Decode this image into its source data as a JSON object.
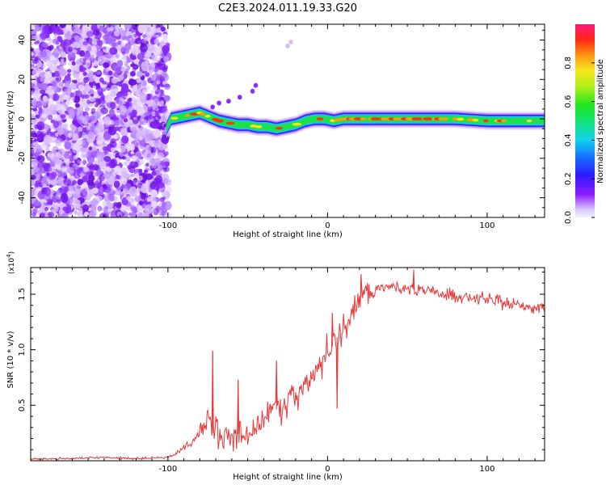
{
  "title": "C2E3.2024.011.19.33.G20",
  "chart_data": [
    {
      "type": "heatmap",
      "xlabel": "Height of straight line (km)",
      "ylabel": "Frequency (Hz)",
      "xlim": [
        -186,
        136
      ],
      "ylim": [
        -50,
        48
      ],
      "xticks": [
        -100,
        0,
        100
      ],
      "yticks": [
        -40,
        -20,
        0,
        20,
        40
      ],
      "colorbar": {
        "label": "Normalized spectral amplitude",
        "range": [
          0,
          1
        ],
        "ticks": [
          0.0,
          0.2,
          0.4,
          0.6,
          0.8
        ]
      },
      "track": {
        "description": "Frequency of peak spectral amplitude vs height",
        "x": [
          -101,
          -98,
          -92,
          -86,
          -80,
          -74,
          -68,
          -62,
          -56,
          -50,
          -44,
          -38,
          -32,
          -26,
          -20,
          -14,
          -8,
          -2,
          4,
          10,
          20,
          40,
          60,
          80,
          100,
          120,
          136
        ],
        "y": [
          -5,
          0,
          1,
          2,
          3,
          1,
          -1,
          -2,
          -3,
          -3,
          -4,
          -4,
          -5,
          -4,
          -3,
          -1,
          0,
          0,
          -1,
          0,
          0,
          0,
          0,
          0,
          -1,
          -1,
          -1
        ]
      }
    },
    {
      "type": "line",
      "xlabel": "Height of straight line (km)",
      "ylabel": "SNR (10 * v/v)",
      "multiplier_label": "(x10",
      "multiplier_exp": "4",
      "xlim": [
        -186,
        136
      ],
      "ylim": [
        0,
        17400
      ],
      "xticks": [
        -100,
        0,
        100
      ],
      "yticks": [
        5000,
        10000,
        15000
      ],
      "ytick_labels": [
        "0.5",
        "1.0",
        "1.5"
      ],
      "series": [
        {
          "name": "SNR",
          "color": "#e8383a",
          "x": [
            -186,
            -160,
            -140,
            -120,
            -100,
            -95,
            -90,
            -85,
            -80,
            -78,
            -75,
            -72,
            -70,
            -68,
            -65,
            -60,
            -55,
            -50,
            -45,
            -40,
            -35,
            -30,
            -25,
            -20,
            -15,
            -10,
            -7,
            -5,
            -2,
            0,
            3,
            5,
            7,
            10,
            12,
            15,
            18,
            20,
            22,
            25,
            30,
            35,
            40,
            45,
            50,
            55,
            60,
            65,
            70,
            75,
            80,
            90,
            100,
            110,
            120,
            130,
            136
          ],
          "y": [
            150,
            200,
            300,
            200,
            300,
            600,
            1200,
            1600,
            2500,
            3000,
            4000,
            2500,
            3500,
            2500,
            2000,
            2000,
            2500,
            2500,
            3000,
            3800,
            4500,
            4700,
            5500,
            6000,
            6500,
            7500,
            8000,
            8500,
            9300,
            10000,
            10300,
            11000,
            11300,
            12000,
            12500,
            13000,
            14000,
            14500,
            15000,
            15300,
            15400,
            15600,
            15700,
            15600,
            15500,
            15400,
            15300,
            15200,
            15000,
            15000,
            14900,
            14700,
            14500,
            14200,
            14000,
            13800,
            13800
          ],
          "spikes": [
            {
              "x": -72,
              "y": 9900
            },
            {
              "x": -56,
              "y": 7300
            },
            {
              "x": -32,
              "y": 9000
            },
            {
              "x": 3,
              "y": 13300
            },
            {
              "x": 6,
              "y": 4700
            },
            {
              "x": 21,
              "y": 16800
            },
            {
              "x": 54,
              "y": 17200
            }
          ]
        }
      ]
    }
  ]
}
